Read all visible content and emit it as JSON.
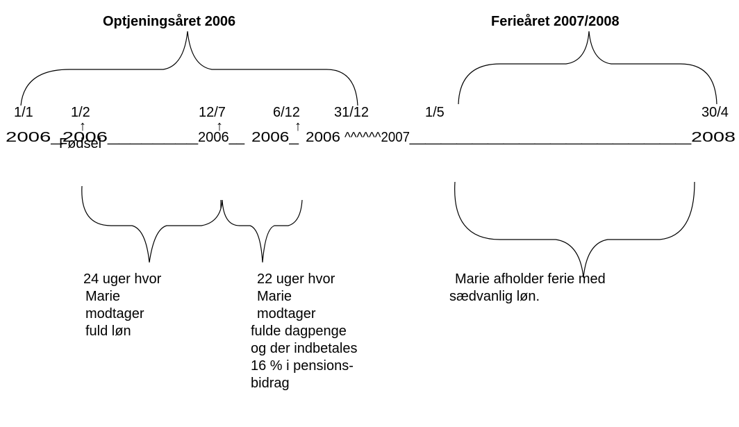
{
  "headings": [
    "Optjeningsåret 2006",
    "Ferieåret 2007/2008"
  ],
  "dates_top": [
    "1/1",
    "1/2",
    "12/7",
    "6/12",
    "31/12",
    "1/5",
    "30/4"
  ],
  "timeline": [
    "2006_2006",
    "________",
    "2006__",
    "2006_",
    "2006",
    "^^^^^^2007",
    "__________________",
    "2008"
  ],
  "arrows": [
    "↑",
    "↑",
    "↑"
  ],
  "birth": "Fødsel",
  "notes": [
    [
      "24 uger hvor",
      "Marie",
      "modtager",
      "fuld løn"
    ],
    [
      "22 uger hvor",
      "Marie",
      "modtager",
      "fulde dagpenge",
      "og der indbetales",
      "16 % i pensions-",
      "bidrag"
    ],
    [
      "Marie afholder ferie med",
      "sædvanlig løn."
    ]
  ]
}
